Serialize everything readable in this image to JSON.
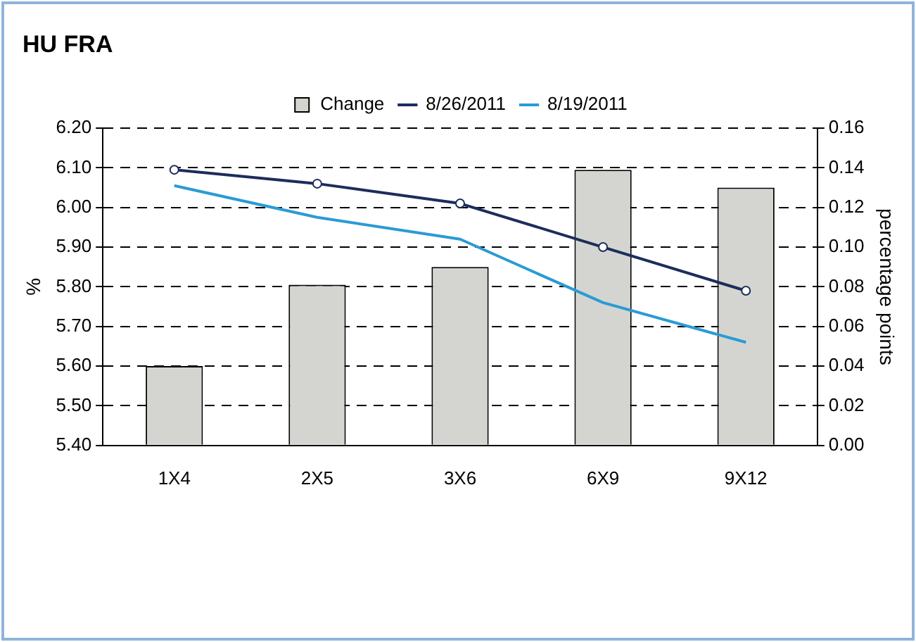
{
  "chart_data": {
    "type": "bar",
    "title": "HU FRA",
    "ylabel": "%",
    "y2label": "percentage points",
    "categories": [
      "1X4",
      "2X5",
      "3X6",
      "6X9",
      "9X12"
    ],
    "series": [
      {
        "name": "Change",
        "axis": "y2",
        "color": "#d4d5d1",
        "values": [
          0.04,
          0.081,
          0.09,
          0.139,
          0.13
        ]
      },
      {
        "name": "8/26/2011",
        "type": "line",
        "color": "#1c2d5c",
        "marker": "circle",
        "values": [
          6.095,
          6.06,
          6.01,
          5.9,
          5.79
        ]
      },
      {
        "name": "8/19/2011",
        "type": "line",
        "color": "#2a9bd3",
        "marker": "none",
        "values": [
          6.055,
          5.975,
          5.92,
          5.76,
          5.66
        ]
      }
    ],
    "ylim": [
      5.4,
      6.2
    ],
    "yticks": [
      {
        "value": 5.4,
        "label": "5.40"
      },
      {
        "value": 5.5,
        "label": "5.50"
      },
      {
        "value": 5.6,
        "label": "5.60"
      },
      {
        "value": 5.7,
        "label": "5.70"
      },
      {
        "value": 5.8,
        "label": "5.80"
      },
      {
        "value": 5.9,
        "label": "5.90"
      },
      {
        "value": 6.0,
        "label": "6.00"
      },
      {
        "value": 6.1,
        "label": "6.10"
      },
      {
        "value": 6.2,
        "label": "6.20"
      }
    ],
    "y2lim": [
      0,
      0.16
    ],
    "y2ticks": [
      {
        "value": 0,
        "label": "0.00"
      },
      {
        "value": 0.02,
        "label": "0.02"
      },
      {
        "value": 0.04,
        "label": "0.04"
      },
      {
        "value": 0.06,
        "label": "0.06"
      },
      {
        "value": 0.08,
        "label": "0.08"
      },
      {
        "value": 0.1,
        "label": "0.10"
      },
      {
        "value": 0.12,
        "label": "0.12"
      },
      {
        "value": 0.14,
        "label": "0.14"
      },
      {
        "value": 0.16,
        "label": "0.16"
      }
    ],
    "grid": "y",
    "legend": "top"
  }
}
